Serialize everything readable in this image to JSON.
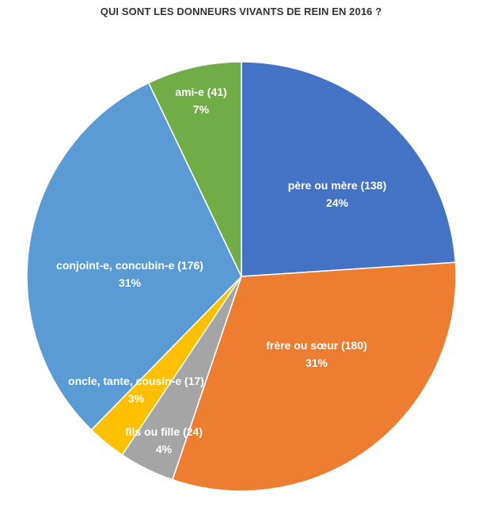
{
  "chart_data": {
    "type": "pie",
    "title": "QUI SONT LES DONNEURS VIVANTS DE REIN EN 2016 ?",
    "slices": [
      {
        "label": "père ou mère (138)",
        "value": 138,
        "percent_label": "24%",
        "color": "#4472C4"
      },
      {
        "label": "frère ou sœur (180)",
        "value": 180,
        "percent_label": "31%",
        "color": "#ED7D31"
      },
      {
        "label": "fils ou fille (24)",
        "value": 24,
        "percent_label": "4%",
        "color": "#A5A5A5"
      },
      {
        "label": "oncle, tante, cousin-e (17)",
        "value": 17,
        "percent_label": "3%",
        "color": "#FFC000"
      },
      {
        "label": "conjoint-e, concubin-e (176)",
        "value": 176,
        "percent_label": "31%",
        "color": "#5B9BD5"
      },
      {
        "label": "ami-e (41)",
        "value": 41,
        "percent_label": "7%",
        "color": "#70AD47"
      }
    ],
    "start": "top",
    "direction": "clockwise",
    "legend": "none"
  }
}
